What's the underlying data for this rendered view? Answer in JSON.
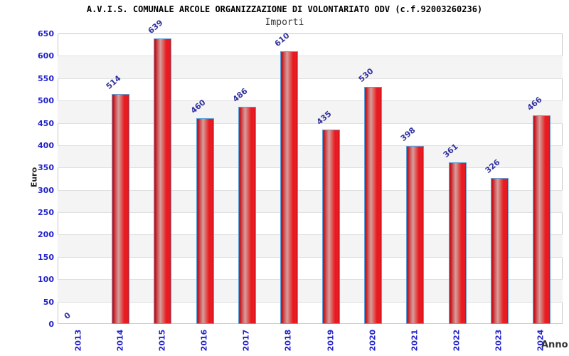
{
  "chart_data": {
    "type": "bar",
    "title": "A.V.I.S. COMUNALE ARCOLE ORGANIZZAZIONE DI VOLONTARIATO ODV (c.f.92003260236)",
    "subtitle": "Importi",
    "xlabel": "Anno",
    "ylabel": "Euro",
    "categories": [
      "2013",
      "2014",
      "2015",
      "2016",
      "2017",
      "2018",
      "2019",
      "2020",
      "2021",
      "2022",
      "2023",
      "2024"
    ],
    "values": [
      0,
      514,
      639,
      460,
      486,
      610,
      435,
      530,
      398,
      361,
      326,
      466
    ],
    "ylim": [
      0,
      650
    ],
    "ytick_step": 50,
    "grid": "horizontal-bands",
    "legend_position": "none",
    "colors": {
      "bar_fill": "#e41b20",
      "bar_highlight": "#d89d9d",
      "bar_border": "#5c9fd6",
      "value_label": "#3333a0",
      "tick_label": "#2222cc",
      "band_alt": "#f4f4f4",
      "gridline": "#e0e0e0",
      "plot_border": "#c9c9c9",
      "title": "#000000",
      "subtitle": "#3c3c3c",
      "axis_title": "#222222"
    }
  }
}
